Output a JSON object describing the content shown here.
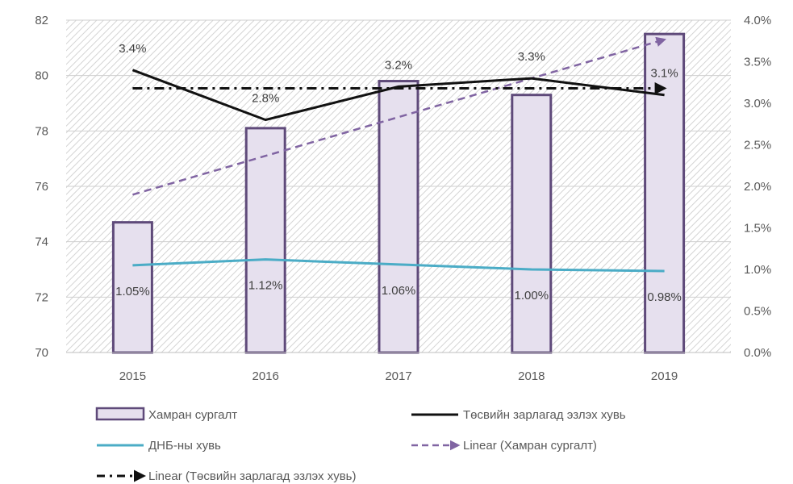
{
  "chart_data": {
    "type": "bar",
    "categories": [
      "2015",
      "2016",
      "2017",
      "2018",
      "2019"
    ],
    "ylim": [
      70,
      82
    ],
    "y2lim": [
      0,
      4
    ],
    "y_ticks": [
      "70",
      "72",
      "74",
      "76",
      "78",
      "80",
      "82"
    ],
    "y2_ticks": [
      "0.0%",
      "0.5%",
      "1.0%",
      "1.5%",
      "2.0%",
      "2.5%",
      "3.0%",
      "3.5%",
      "4.0%"
    ],
    "legend_position": "bottom",
    "background": "hatched",
    "series": [
      {
        "name": "Хамран сургалт",
        "type": "bar",
        "axis": "left",
        "values": [
          74.7,
          78.1,
          79.8,
          79.3,
          81.5
        ],
        "color": "#e6e0ee",
        "stroke": "#5f4a7a"
      },
      {
        "name": "Төсвийн зарлагад эзлэх хувь",
        "type": "line",
        "axis": "right",
        "values": [
          3.4,
          2.8,
          3.2,
          3.3,
          3.1
        ],
        "labels": [
          "3.4%",
          "2.8%",
          "3.2%",
          "3.3%",
          "3.1%"
        ],
        "color": "#111111"
      },
      {
        "name": "ДНБ-ны хувь",
        "type": "line",
        "axis": "right",
        "values": [
          1.05,
          1.12,
          1.06,
          1.0,
          0.98
        ],
        "labels": [
          "1.05%",
          "1.12%",
          "1.06%",
          "1.00%",
          "0.98%"
        ],
        "color": "#4bacc6"
      },
      {
        "name": "Linear (Хамран сургалт)",
        "type": "trend",
        "axis": "left",
        "values": [
          75.7,
          77.1,
          78.5,
          79.9,
          81.3
        ],
        "color": "#8064a2"
      },
      {
        "name": "Linear (Төсвийн зарлагад эзлэх хувь)",
        "type": "trend",
        "axis": "right",
        "values": [
          3.18,
          3.18,
          3.18,
          3.18,
          3.18
        ],
        "color": "#111111"
      }
    ]
  }
}
